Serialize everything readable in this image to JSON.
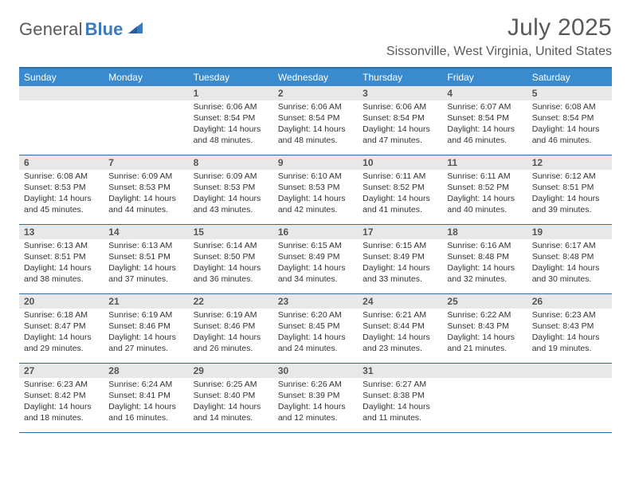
{
  "logo": {
    "text1": "General",
    "text2": "Blue"
  },
  "title": "July 2025",
  "location": "Sissonville, West Virginia, United States",
  "colors": {
    "header_bar": "#3a8bce",
    "border": "#2f6fa8",
    "daynum_bg": "#e8e8e8",
    "text_dark": "#333333",
    "text_mid": "#595959",
    "logo_blue": "#3a7abd"
  },
  "weekdays": [
    "Sunday",
    "Monday",
    "Tuesday",
    "Wednesday",
    "Thursday",
    "Friday",
    "Saturday"
  ],
  "weeks": [
    [
      null,
      null,
      {
        "n": "1",
        "sr": "6:06 AM",
        "ss": "8:54 PM",
        "dl": "14 hours and 48 minutes."
      },
      {
        "n": "2",
        "sr": "6:06 AM",
        "ss": "8:54 PM",
        "dl": "14 hours and 48 minutes."
      },
      {
        "n": "3",
        "sr": "6:06 AM",
        "ss": "8:54 PM",
        "dl": "14 hours and 47 minutes."
      },
      {
        "n": "4",
        "sr": "6:07 AM",
        "ss": "8:54 PM",
        "dl": "14 hours and 46 minutes."
      },
      {
        "n": "5",
        "sr": "6:08 AM",
        "ss": "8:54 PM",
        "dl": "14 hours and 46 minutes."
      }
    ],
    [
      {
        "n": "6",
        "sr": "6:08 AM",
        "ss": "8:53 PM",
        "dl": "14 hours and 45 minutes."
      },
      {
        "n": "7",
        "sr": "6:09 AM",
        "ss": "8:53 PM",
        "dl": "14 hours and 44 minutes."
      },
      {
        "n": "8",
        "sr": "6:09 AM",
        "ss": "8:53 PM",
        "dl": "14 hours and 43 minutes."
      },
      {
        "n": "9",
        "sr": "6:10 AM",
        "ss": "8:53 PM",
        "dl": "14 hours and 42 minutes."
      },
      {
        "n": "10",
        "sr": "6:11 AM",
        "ss": "8:52 PM",
        "dl": "14 hours and 41 minutes."
      },
      {
        "n": "11",
        "sr": "6:11 AM",
        "ss": "8:52 PM",
        "dl": "14 hours and 40 minutes."
      },
      {
        "n": "12",
        "sr": "6:12 AM",
        "ss": "8:51 PM",
        "dl": "14 hours and 39 minutes."
      }
    ],
    [
      {
        "n": "13",
        "sr": "6:13 AM",
        "ss": "8:51 PM",
        "dl": "14 hours and 38 minutes."
      },
      {
        "n": "14",
        "sr": "6:13 AM",
        "ss": "8:51 PM",
        "dl": "14 hours and 37 minutes."
      },
      {
        "n": "15",
        "sr": "6:14 AM",
        "ss": "8:50 PM",
        "dl": "14 hours and 36 minutes."
      },
      {
        "n": "16",
        "sr": "6:15 AM",
        "ss": "8:49 PM",
        "dl": "14 hours and 34 minutes."
      },
      {
        "n": "17",
        "sr": "6:15 AM",
        "ss": "8:49 PM",
        "dl": "14 hours and 33 minutes."
      },
      {
        "n": "18",
        "sr": "6:16 AM",
        "ss": "8:48 PM",
        "dl": "14 hours and 32 minutes."
      },
      {
        "n": "19",
        "sr": "6:17 AM",
        "ss": "8:48 PM",
        "dl": "14 hours and 30 minutes."
      }
    ],
    [
      {
        "n": "20",
        "sr": "6:18 AM",
        "ss": "8:47 PM",
        "dl": "14 hours and 29 minutes."
      },
      {
        "n": "21",
        "sr": "6:19 AM",
        "ss": "8:46 PM",
        "dl": "14 hours and 27 minutes."
      },
      {
        "n": "22",
        "sr": "6:19 AM",
        "ss": "8:46 PM",
        "dl": "14 hours and 26 minutes."
      },
      {
        "n": "23",
        "sr": "6:20 AM",
        "ss": "8:45 PM",
        "dl": "14 hours and 24 minutes."
      },
      {
        "n": "24",
        "sr": "6:21 AM",
        "ss": "8:44 PM",
        "dl": "14 hours and 23 minutes."
      },
      {
        "n": "25",
        "sr": "6:22 AM",
        "ss": "8:43 PM",
        "dl": "14 hours and 21 minutes."
      },
      {
        "n": "26",
        "sr": "6:23 AM",
        "ss": "8:43 PM",
        "dl": "14 hours and 19 minutes."
      }
    ],
    [
      {
        "n": "27",
        "sr": "6:23 AM",
        "ss": "8:42 PM",
        "dl": "14 hours and 18 minutes."
      },
      {
        "n": "28",
        "sr": "6:24 AM",
        "ss": "8:41 PM",
        "dl": "14 hours and 16 minutes."
      },
      {
        "n": "29",
        "sr": "6:25 AM",
        "ss": "8:40 PM",
        "dl": "14 hours and 14 minutes."
      },
      {
        "n": "30",
        "sr": "6:26 AM",
        "ss": "8:39 PM",
        "dl": "14 hours and 12 minutes."
      },
      {
        "n": "31",
        "sr": "6:27 AM",
        "ss": "8:38 PM",
        "dl": "14 hours and 11 minutes."
      },
      null,
      null
    ]
  ],
  "labels": {
    "sunrise": "Sunrise:",
    "sunset": "Sunset:",
    "daylight": "Daylight:"
  }
}
